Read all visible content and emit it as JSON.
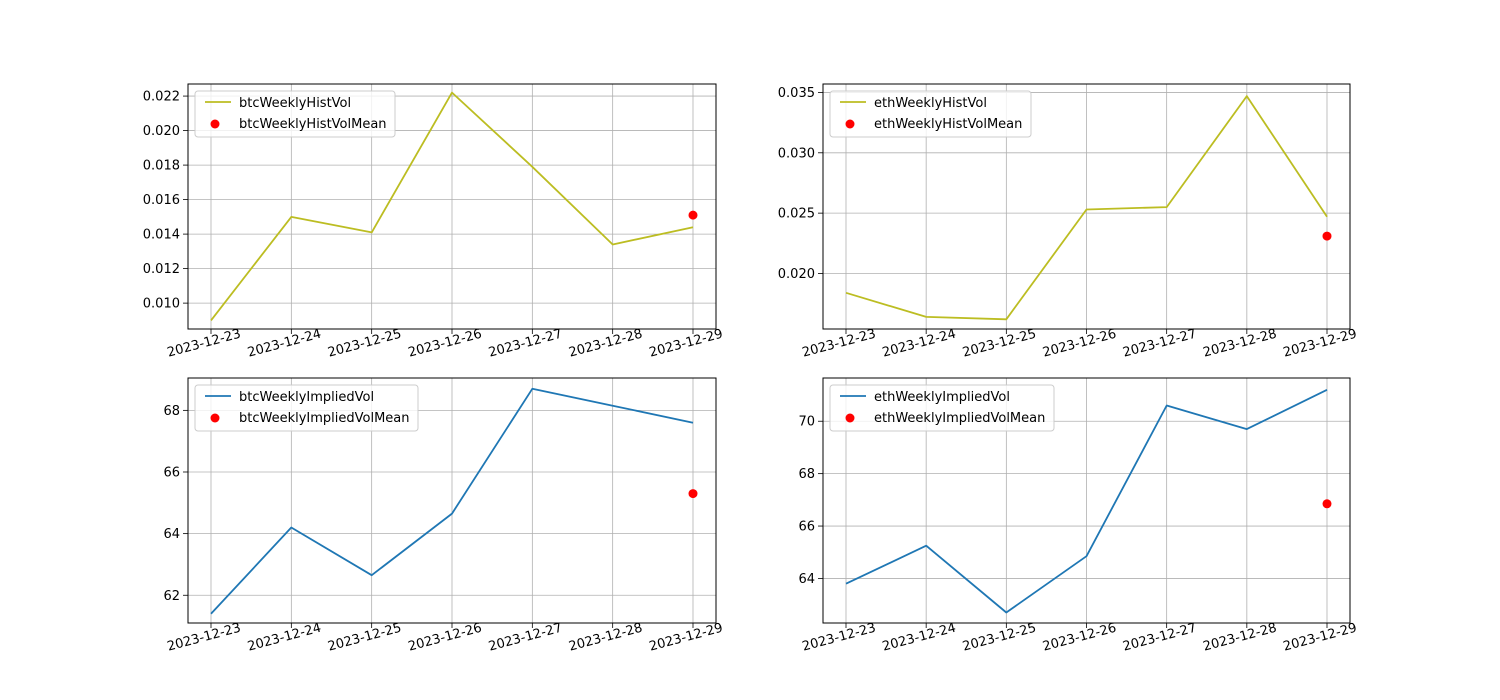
{
  "chart_data": [
    {
      "type": "line",
      "x": [
        "2023-12-23",
        "2023-12-24",
        "2023-12-25",
        "2023-12-26",
        "2023-12-27",
        "2023-12-28",
        "2023-12-29"
      ],
      "series": [
        {
          "name": "btcWeeklyHistVol",
          "kind": "line",
          "color": "#bcbd22",
          "values": [
            0.009,
            0.015,
            0.0141,
            0.0222,
            0.0179,
            0.0134,
            0.0144
          ]
        },
        {
          "name": "btcWeeklyHistVolMean",
          "kind": "scatter",
          "color": "#ff0000",
          "points": [
            {
              "x": "2023-12-29",
              "y": 0.0151
            }
          ]
        }
      ],
      "yticks": [
        "0.010",
        "0.012",
        "0.014",
        "0.016",
        "0.018",
        "0.020",
        "0.022"
      ],
      "ylim": [
        0.0085,
        0.0227
      ],
      "grid": true,
      "legend": "top-left"
    },
    {
      "type": "line",
      "x": [
        "2023-12-23",
        "2023-12-24",
        "2023-12-25",
        "2023-12-26",
        "2023-12-27",
        "2023-12-28",
        "2023-12-29"
      ],
      "series": [
        {
          "name": "ethWeeklyHistVol",
          "kind": "line",
          "color": "#bcbd22",
          "values": [
            0.0184,
            0.0164,
            0.0162,
            0.0253,
            0.0255,
            0.0347,
            0.0247
          ]
        },
        {
          "name": "ethWeeklyHistVolMean",
          "kind": "scatter",
          "color": "#ff0000",
          "points": [
            {
              "x": "2023-12-29",
              "y": 0.0231
            }
          ]
        }
      ],
      "yticks": [
        "0.020",
        "0.025",
        "0.030",
        "0.035"
      ],
      "ylim": [
        0.0154,
        0.0357
      ],
      "grid": true,
      "legend": "top-left"
    },
    {
      "type": "line",
      "x": [
        "2023-12-23",
        "2023-12-24",
        "2023-12-25",
        "2023-12-26",
        "2023-12-27",
        "2023-12-28",
        "2023-12-29"
      ],
      "series": [
        {
          "name": "btcWeeklyImpliedVol",
          "kind": "line",
          "color": "#1f77b4",
          "values": [
            61.4,
            64.2,
            62.65,
            64.65,
            68.7,
            68.15,
            67.6
          ]
        },
        {
          "name": "btcWeeklyImpliedVolMean",
          "kind": "scatter",
          "color": "#ff0000",
          "points": [
            {
              "x": "2023-12-29",
              "y": 65.3
            }
          ]
        }
      ],
      "yticks": [
        "62",
        "64",
        "66",
        "68"
      ],
      "ylim": [
        61.1,
        69.05
      ],
      "grid": true,
      "legend": "top-left"
    },
    {
      "type": "line",
      "x": [
        "2023-12-23",
        "2023-12-24",
        "2023-12-25",
        "2023-12-26",
        "2023-12-27",
        "2023-12-28",
        "2023-12-29"
      ],
      "series": [
        {
          "name": "ethWeeklyImpliedVol",
          "kind": "line",
          "color": "#1f77b4",
          "values": [
            63.8,
            65.25,
            62.7,
            64.85,
            70.6,
            69.7,
            71.2
          ]
        },
        {
          "name": "ethWeeklyImpliedVolMean",
          "kind": "scatter",
          "color": "#ff0000",
          "points": [
            {
              "x": "2023-12-29",
              "y": 66.85
            }
          ]
        }
      ],
      "yticks": [
        "64",
        "66",
        "68",
        "70"
      ],
      "ylim": [
        62.3,
        71.65
      ],
      "grid": true,
      "legend": "top-left"
    }
  ]
}
